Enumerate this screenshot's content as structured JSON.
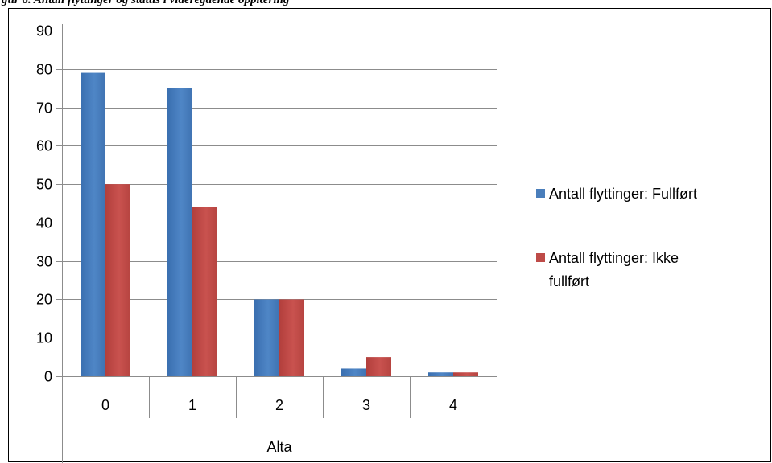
{
  "figure_caption": "gur 6. Antall flyttinger og status i videregående opplæring",
  "chart_data": {
    "type": "bar",
    "title": "",
    "xlabel": "",
    "ylabel": "",
    "categories": [
      "0",
      "1",
      "2",
      "3",
      "4"
    ],
    "group_label": "Alta",
    "series": [
      {
        "name": "Antall flyttinger: Fullført",
        "color": "#4A7EBB",
        "values": [
          79,
          75,
          20,
          2,
          1
        ]
      },
      {
        "name": "Antall flyttinger: Ikke fullført",
        "color": "#BE4B48",
        "values": [
          50,
          44,
          20,
          5,
          1
        ]
      }
    ],
    "ylim": [
      0,
      90
    ],
    "yticks": [
      "0",
      "10",
      "20",
      "30",
      "40",
      "50",
      "60",
      "70",
      "80",
      "90"
    ],
    "grid": true,
    "legend_position": "right"
  }
}
